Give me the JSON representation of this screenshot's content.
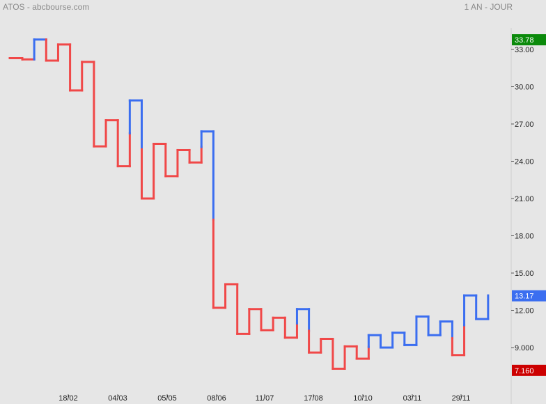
{
  "header": {
    "title": "ATOS - abcbourse.com",
    "period": "1 AN - JOUR"
  },
  "colors": {
    "background": "#e6e6e6",
    "up": "#3b6ef0",
    "down": "#f04848",
    "tick_text": "#222222",
    "badge_high": "#0b8a0b",
    "badge_last": "#3b6ef0",
    "badge_low": "#cc0000"
  },
  "chart_data": {
    "type": "line",
    "subtype": "kagi",
    "title": "ATOS - abcbourse.com",
    "period": "1 AN - JOUR",
    "xlabel": "",
    "ylabel": "",
    "ylim": [
      6.9,
      34.2
    ],
    "grid": false,
    "yticks": [
      33.0,
      30.0,
      27.0,
      24.0,
      21.0,
      18.0,
      15.0,
      12.0,
      9.0
    ],
    "ytick_labels": [
      "33.00",
      "30.00",
      "27.00",
      "24.00",
      "21.00",
      "18.00",
      "15.00",
      "12.00",
      "9.000"
    ],
    "xtick_labels": [
      "18/02",
      "04/03",
      "05/05",
      "08/06",
      "11/07",
      "17/08",
      "10/10",
      "03/11",
      "29/11"
    ],
    "badges": [
      {
        "label": "33.78",
        "value": 33.78,
        "kind": "high"
      },
      {
        "label": "13.17",
        "value": 13.17,
        "kind": "last"
      },
      {
        "label": "7.160",
        "value": 7.16,
        "kind": "low"
      }
    ],
    "kagi_start": 32.3,
    "kagi_verticals": [
      {
        "to": 32.2,
        "color": "down"
      },
      {
        "to": 33.8,
        "color": "up"
      },
      {
        "to": 32.1,
        "color": "down"
      },
      {
        "to": 33.4,
        "color": "down"
      },
      {
        "to": 29.7,
        "color": "down"
      },
      {
        "to": 32.0,
        "color": "down"
      },
      {
        "to": 25.2,
        "color": "down"
      },
      {
        "to": 27.3,
        "color": "down"
      },
      {
        "to": 23.6,
        "color": "down"
      },
      {
        "to": 28.9,
        "color": "mixed"
      },
      {
        "to": 21.0,
        "color": "mixed"
      },
      {
        "to": 25.4,
        "color": "down"
      },
      {
        "to": 22.8,
        "color": "down"
      },
      {
        "to": 24.9,
        "color": "down"
      },
      {
        "to": 23.9,
        "color": "down"
      },
      {
        "to": 26.4,
        "color": "mixed"
      },
      {
        "to": 12.2,
        "color": "mixed"
      },
      {
        "to": 14.1,
        "color": "down"
      },
      {
        "to": 10.1,
        "color": "down"
      },
      {
        "to": 12.1,
        "color": "down"
      },
      {
        "to": 10.4,
        "color": "down"
      },
      {
        "to": 11.4,
        "color": "down"
      },
      {
        "to": 9.8,
        "color": "down"
      },
      {
        "to": 12.1,
        "color": "mixed"
      },
      {
        "to": 8.6,
        "color": "mixed"
      },
      {
        "to": 9.7,
        "color": "down"
      },
      {
        "to": 7.3,
        "color": "down"
      },
      {
        "to": 9.1,
        "color": "down"
      },
      {
        "to": 8.1,
        "color": "down"
      },
      {
        "to": 10.0,
        "color": "mixed"
      },
      {
        "to": 9.0,
        "color": "up"
      },
      {
        "to": 10.2,
        "color": "up"
      },
      {
        "to": 9.2,
        "color": "up"
      },
      {
        "to": 11.5,
        "color": "up"
      },
      {
        "to": 10.0,
        "color": "up"
      },
      {
        "to": 11.1,
        "color": "up"
      },
      {
        "to": 8.4,
        "color": "mixed"
      },
      {
        "to": 13.2,
        "color": "mixed"
      },
      {
        "to": 11.3,
        "color": "up"
      },
      {
        "to": 13.2,
        "color": "up"
      }
    ],
    "colorings_explained": false
  }
}
